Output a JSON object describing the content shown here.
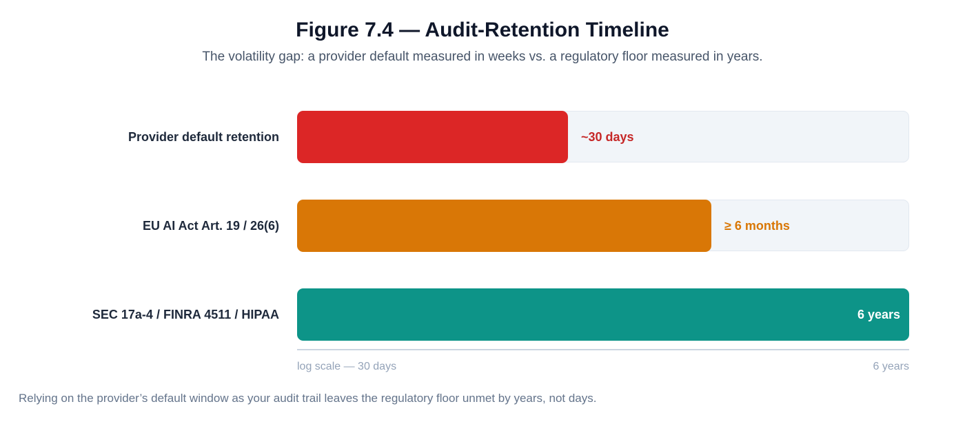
{
  "chart_data": {
    "type": "bar",
    "orientation": "horizontal",
    "title": "Figure 7.4 — Audit-Retention Timeline",
    "subtitle": "The volatility gap: a provider default measured in weeks vs. a regulatory floor measured in years.",
    "scale": "log",
    "axis_left_label": "log scale — 30 days",
    "axis_right_label": "6 years",
    "range_days": [
      30,
      2190
    ],
    "categories": [
      "Provider default retention",
      "EU AI Act Art. 19 / 26(6)",
      "SEC 17a-4 / FINRA 4511 / HIPAA"
    ],
    "bars": [
      {
        "label": "Provider default retention",
        "value_label": "~30 days",
        "fill_fraction": 0.443,
        "color": "#dc2626"
      },
      {
        "label": "EU AI Act Art. 19 / 26(6)",
        "value_label": "≥ 6 months",
        "fill_fraction": 0.677,
        "color": "#d97706"
      },
      {
        "label": "SEC 17a-4 / FINRA 4511 / HIPAA",
        "value_label": "6 years",
        "fill_fraction": 1.0,
        "color": "#0d9488"
      }
    ],
    "caption": "Relying on the provider’s default window as your audit trail leaves the regulatory floor unmet by years, not days."
  }
}
